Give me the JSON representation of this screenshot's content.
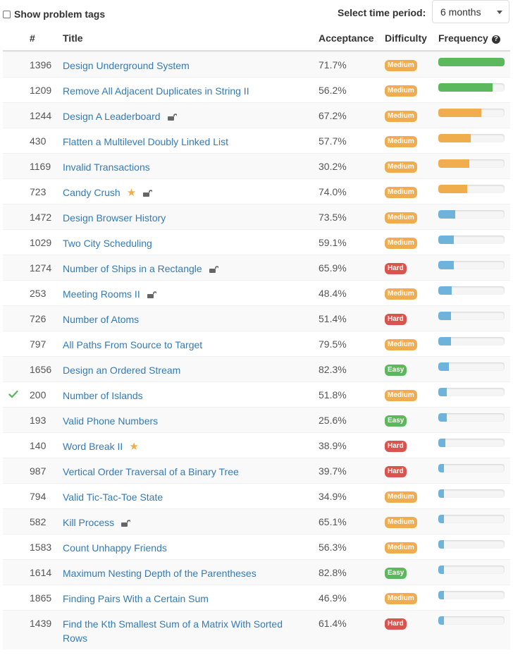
{
  "controls": {
    "show_tags_label": "Show problem tags",
    "time_period_label": "Select time period:",
    "time_period_value": "6 months"
  },
  "table": {
    "headers": {
      "status": "",
      "number": "#",
      "title": "Title",
      "acceptance": "Acceptance",
      "difficulty": "Difficulty",
      "frequency": "Frequency"
    },
    "help_glyph": "?",
    "colors": {
      "title": "#337ab7",
      "medium": "#f0ad4e",
      "hard": "#d9534f",
      "easy": "#5cb85c",
      "freq_high": "#5cb85c",
      "freq_mid": "#f0ad4e",
      "freq_low": "#6db3dc",
      "solved_check": "#5cb85c"
    },
    "rows": [
      {
        "num": "1396",
        "title": "Design Underground System",
        "acceptance": "71.7%",
        "difficulty": "Medium",
        "frequency": 1.0
      },
      {
        "num": "1209",
        "title": "Remove All Adjacent Duplicates in String II",
        "acceptance": "56.2%",
        "difficulty": "Medium",
        "frequency": 0.82
      },
      {
        "num": "1244",
        "title": "Design A Leaderboard",
        "acceptance": "67.2%",
        "difficulty": "Medium",
        "frequency": 0.65,
        "locked": true
      },
      {
        "num": "430",
        "title": "Flatten a Multilevel Doubly Linked List",
        "acceptance": "57.7%",
        "difficulty": "Medium",
        "frequency": 0.49
      },
      {
        "num": "1169",
        "title": "Invalid Transactions",
        "acceptance": "30.2%",
        "difficulty": "Medium",
        "frequency": 0.47
      },
      {
        "num": "723",
        "title": "Candy Crush",
        "acceptance": "74.0%",
        "difficulty": "Medium",
        "frequency": 0.44,
        "starred": true,
        "locked": true
      },
      {
        "num": "1472",
        "title": "Design Browser History",
        "acceptance": "73.5%",
        "difficulty": "Medium",
        "frequency": 0.25
      },
      {
        "num": "1029",
        "title": "Two City Scheduling",
        "acceptance": "59.1%",
        "difficulty": "Medium",
        "frequency": 0.23
      },
      {
        "num": "1274",
        "title": "Number of Ships in a Rectangle",
        "acceptance": "65.9%",
        "difficulty": "Hard",
        "frequency": 0.23,
        "locked": true
      },
      {
        "num": "253",
        "title": "Meeting Rooms II",
        "acceptance": "48.4%",
        "difficulty": "Medium",
        "frequency": 0.2,
        "locked": true
      },
      {
        "num": "726",
        "title": "Number of Atoms",
        "acceptance": "51.4%",
        "difficulty": "Hard",
        "frequency": 0.19
      },
      {
        "num": "797",
        "title": "All Paths From Source to Target",
        "acceptance": "79.5%",
        "difficulty": "Medium",
        "frequency": 0.19
      },
      {
        "num": "1656",
        "title": "Design an Ordered Stream",
        "acceptance": "82.3%",
        "difficulty": "Easy",
        "frequency": 0.16
      },
      {
        "num": "200",
        "title": "Number of Islands",
        "acceptance": "51.8%",
        "difficulty": "Medium",
        "frequency": 0.13,
        "solved": true
      },
      {
        "num": "193",
        "title": "Valid Phone Numbers",
        "acceptance": "25.6%",
        "difficulty": "Easy",
        "frequency": 0.13
      },
      {
        "num": "140",
        "title": "Word Break II",
        "acceptance": "38.9%",
        "difficulty": "Hard",
        "frequency": 0.11,
        "starred": true
      },
      {
        "num": "987",
        "title": "Vertical Order Traversal of a Binary Tree",
        "acceptance": "39.7%",
        "difficulty": "Hard",
        "frequency": 0.09
      },
      {
        "num": "794",
        "title": "Valid Tic-Tac-Toe State",
        "acceptance": "34.9%",
        "difficulty": "Medium",
        "frequency": 0.09
      },
      {
        "num": "582",
        "title": "Kill Process",
        "acceptance": "65.1%",
        "difficulty": "Medium",
        "frequency": 0.09,
        "locked": true
      },
      {
        "num": "1583",
        "title": "Count Unhappy Friends",
        "acceptance": "56.3%",
        "difficulty": "Medium",
        "frequency": 0.08
      },
      {
        "num": "1614",
        "title": "Maximum Nesting Depth of the Parentheses",
        "acceptance": "82.8%",
        "difficulty": "Easy",
        "frequency": 0.08
      },
      {
        "num": "1865",
        "title": "Finding Pairs With a Certain Sum",
        "acceptance": "46.9%",
        "difficulty": "Medium",
        "frequency": 0.08
      },
      {
        "num": "1439",
        "title": "Find the Kth Smallest Sum of a Matrix With Sorted Rows",
        "acceptance": "61.4%",
        "difficulty": "Hard",
        "frequency": 0.08
      }
    ]
  }
}
